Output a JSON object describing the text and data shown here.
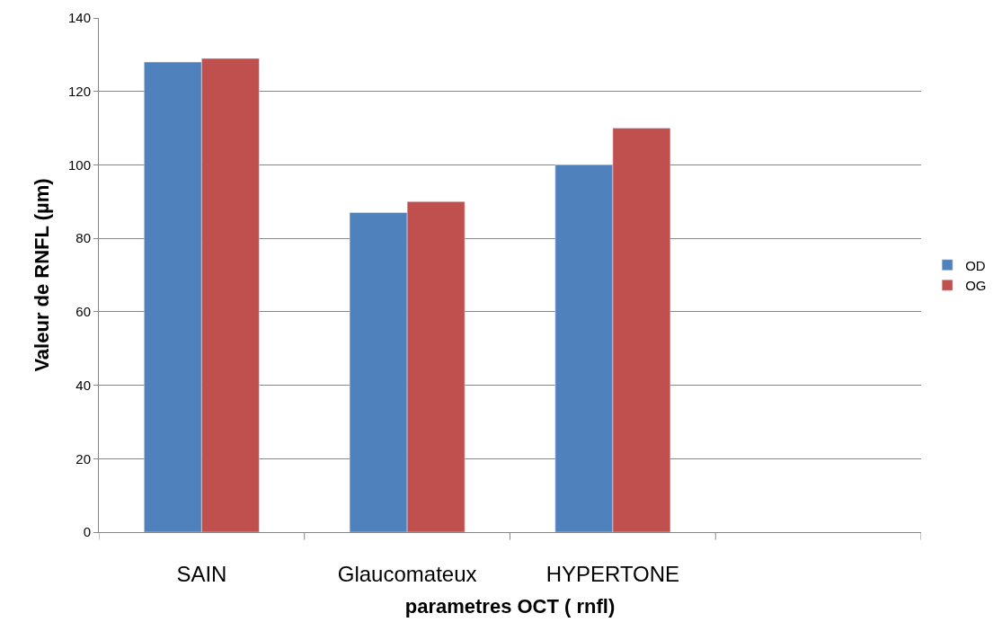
{
  "chart_data": {
    "type": "bar",
    "xlabel": "parametres OCT ( rnfl)",
    "ylabel": "Valeur de RNFL (µm)",
    "categories": [
      "SAIN",
      "Glaucomateux",
      "HYPERTONE",
      null
    ],
    "series": [
      {
        "name": "OD",
        "color": "#4f81bd",
        "values": [
          128,
          87,
          100,
          null
        ]
      },
      {
        "name": "OG",
        "color": "#c0504d",
        "values": [
          129,
          90,
          110,
          null
        ]
      }
    ],
    "ylim": [
      0,
      140
    ],
    "yticks": [
      0,
      20,
      40,
      60,
      80,
      100,
      120,
      140
    ],
    "grid": "y",
    "legend": "right"
  }
}
